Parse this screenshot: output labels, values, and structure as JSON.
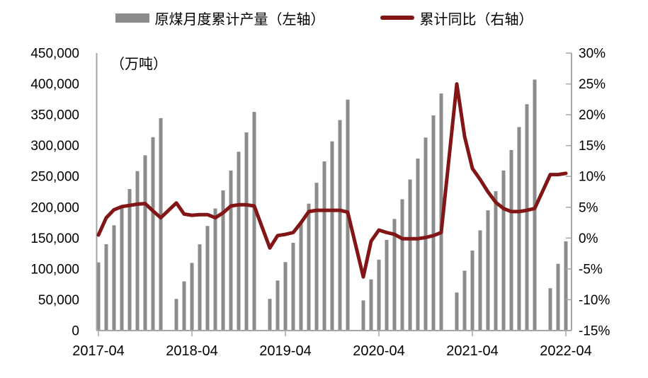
{
  "legend": {
    "items": [
      {
        "label": "原煤月度累计产量（左轴）",
        "swatch": "bar",
        "color": "#8C8C8C"
      },
      {
        "label": "累计同比（右轴）",
        "swatch": "line",
        "color": "#821515"
      }
    ]
  },
  "colors": {
    "bar": "#8C8C8C",
    "line": "#821515",
    "axis": "#A6A6A6",
    "text": "#000000",
    "background": "#FFFFFF"
  },
  "chart_data": {
    "type": "bar+line",
    "title": "",
    "unit_label": "（万吨）",
    "grid": false,
    "legend_position": "top-center",
    "x_axis": {
      "start": "2017-04",
      "end": "2022-04",
      "tick_labels": [
        "2017-04",
        "2018-04",
        "2019-04",
        "2020-04",
        "2021-04",
        "2022-04"
      ],
      "note": "no data points in January (cumulative series; Jan–Feb reported together)"
    },
    "left_axis": {
      "unit": "万吨",
      "min": 0,
      "max": 450000,
      "step": 50000,
      "tick_labels": [
        "0",
        "50,000",
        "100,000",
        "150,000",
        "200,000",
        "250,000",
        "300,000",
        "350,000",
        "400,000",
        "450,000"
      ]
    },
    "right_axis": {
      "unit": "%",
      "min": -15,
      "max": 30,
      "step": 5,
      "tick_labels": [
        "-15%",
        "-10%",
        "-5%",
        "0%",
        "5%",
        "10%",
        "15%",
        "20%",
        "25%",
        "30%"
      ]
    },
    "months": [
      "2017-04",
      "2017-05",
      "2017-06",
      "2017-07",
      "2017-08",
      "2017-09",
      "2017-10",
      "2017-11",
      "2017-12",
      "2018-02",
      "2018-03",
      "2018-04",
      "2018-05",
      "2018-06",
      "2018-07",
      "2018-08",
      "2018-09",
      "2018-10",
      "2018-11",
      "2018-12",
      "2019-02",
      "2019-03",
      "2019-04",
      "2019-05",
      "2019-06",
      "2019-07",
      "2019-08",
      "2019-09",
      "2019-10",
      "2019-11",
      "2019-12",
      "2020-02",
      "2020-03",
      "2020-04",
      "2020-05",
      "2020-06",
      "2020-07",
      "2020-08",
      "2020-09",
      "2020-10",
      "2020-11",
      "2020-12",
      "2021-02",
      "2021-03",
      "2021-04",
      "2021-05",
      "2021-06",
      "2021-07",
      "2021-08",
      "2021-09",
      "2021-10",
      "2021-11",
      "2021-12",
      "2022-02",
      "2022-03",
      "2022-04"
    ],
    "series": [
      {
        "name": "原煤月度累计产量（左轴）",
        "type": "bar",
        "axis": "left",
        "unit": "万吨",
        "color": "#8C8C8C",
        "values": [
          110600,
          140100,
          170700,
          199800,
          229600,
          258600,
          284200,
          313600,
          344500,
          51300,
          79800,
          109700,
          139800,
          169700,
          198000,
          227300,
          259500,
          290000,
          321400,
          354600,
          51400,
          81200,
          111000,
          142300,
          175800,
          205800,
          239700,
          274400,
          306900,
          341400,
          374600,
          48900,
          83000,
          115000,
          147000,
          181000,
          213000,
          245000,
          279000,
          313000,
          349000,
          384400,
          61800,
          97100,
          129800,
          162500,
          195000,
          226000,
          259700,
          292900,
          330000,
          367100,
          407100,
          68700,
          108300,
          144800
        ]
      },
      {
        "name": "累计同比（右轴）",
        "type": "line",
        "axis": "right",
        "unit": "%",
        "color": "#821515",
        "values": [
          0.5,
          3.3,
          4.6,
          5.1,
          5.3,
          5.5,
          5.6,
          4.4,
          3.3,
          5.7,
          3.9,
          3.7,
          3.8,
          3.8,
          3.3,
          4.1,
          5.2,
          5.4,
          5.4,
          5.2,
          -1.6,
          0.4,
          0.6,
          0.9,
          2.5,
          4.3,
          4.5,
          4.5,
          4.5,
          4.5,
          4.2,
          -6.3,
          -0.5,
          1.3,
          0.9,
          0.6,
          -0.1,
          -0.1,
          -0.1,
          0.1,
          0.4,
          0.9,
          25.0,
          16.5,
          11.3,
          9.5,
          7.5,
          5.8,
          4.8,
          4.3,
          4.3,
          4.5,
          4.8,
          10.3,
          10.3,
          10.5
        ]
      }
    ]
  }
}
